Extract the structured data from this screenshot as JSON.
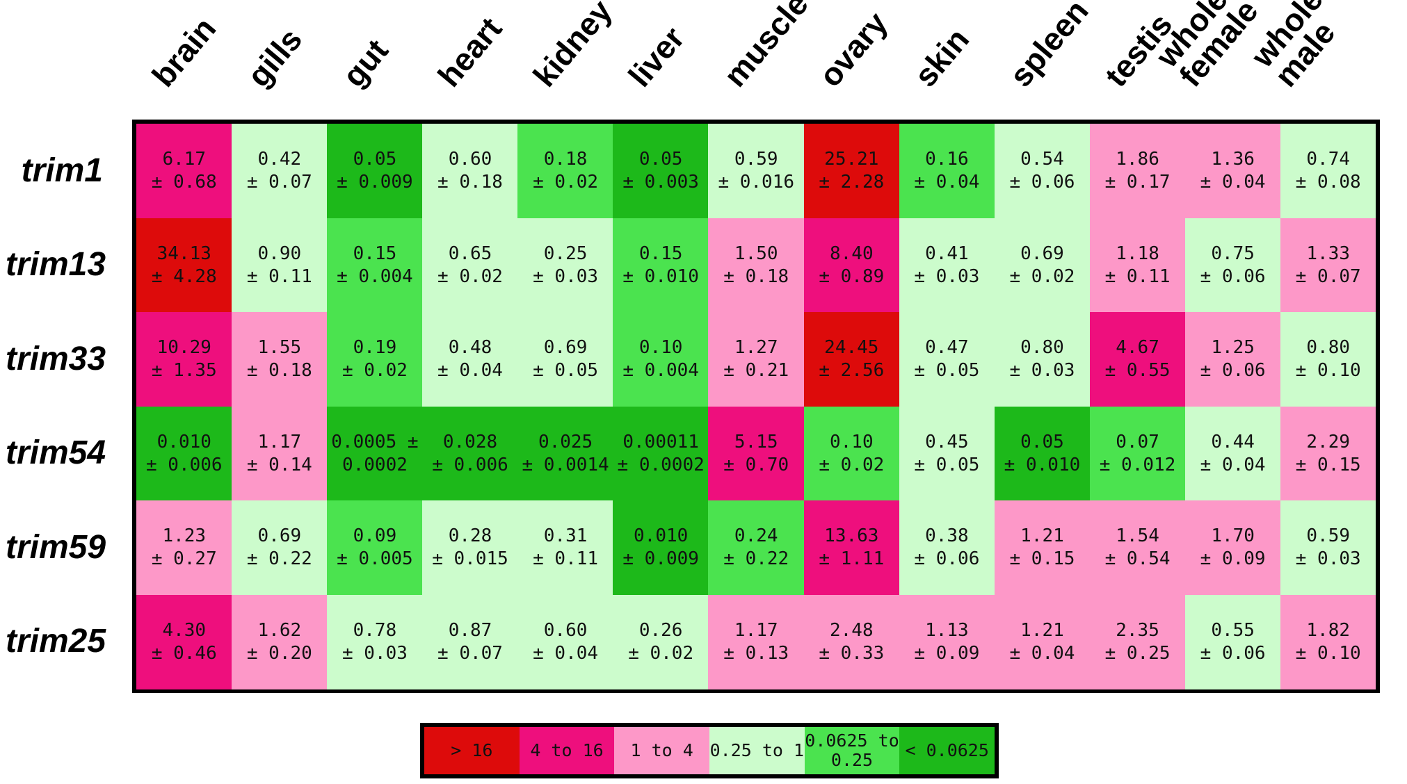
{
  "chart_data": {
    "type": "heatmap",
    "columns": [
      "brain",
      "gills",
      "gut",
      "heart",
      "kidney",
      "liver",
      "muscle",
      "ovary",
      "skin",
      "spleen",
      "testis",
      "whole\nfemale",
      "whole\nmale"
    ],
    "rows": [
      "trim1",
      "trim13",
      "trim33",
      "trim54",
      "trim59",
      "trim25"
    ],
    "values": [
      [
        [
          "6.17",
          "± 0.68"
        ],
        [
          "0.42",
          "± 0.07"
        ],
        [
          "0.05",
          "± 0.009"
        ],
        [
          "0.60",
          "± 0.18"
        ],
        [
          "0.18",
          "± 0.02"
        ],
        [
          "0.05",
          "± 0.003"
        ],
        [
          "0.59",
          "± 0.016"
        ],
        [
          "25.21",
          "± 2.28"
        ],
        [
          "0.16",
          "± 0.04"
        ],
        [
          "0.54",
          "± 0.06"
        ],
        [
          "1.86",
          "± 0.17"
        ],
        [
          "1.36",
          "± 0.04"
        ],
        [
          "0.74",
          "± 0.08"
        ]
      ],
      [
        [
          "34.13",
          "± 4.28"
        ],
        [
          "0.90",
          "± 0.11"
        ],
        [
          "0.15",
          "± 0.004"
        ],
        [
          "0.65",
          "± 0.02"
        ],
        [
          "0.25",
          "± 0.03"
        ],
        [
          "0.15",
          "± 0.010"
        ],
        [
          "1.50",
          "± 0.18"
        ],
        [
          "8.40",
          "± 0.89"
        ],
        [
          "0.41",
          "± 0.03"
        ],
        [
          "0.69",
          "± 0.02"
        ],
        [
          "1.18",
          "± 0.11"
        ],
        [
          "0.75",
          "± 0.06"
        ],
        [
          "1.33",
          "± 0.07"
        ]
      ],
      [
        [
          "10.29",
          "± 1.35"
        ],
        [
          "1.55",
          "± 0.18"
        ],
        [
          "0.19",
          "± 0.02"
        ],
        [
          "0.48",
          "± 0.04"
        ],
        [
          "0.69",
          "± 0.05"
        ],
        [
          "0.10",
          "± 0.004"
        ],
        [
          "1.27",
          "± 0.21"
        ],
        [
          "24.45",
          "± 2.56"
        ],
        [
          "0.47",
          "± 0.05"
        ],
        [
          "0.80",
          "± 0.03"
        ],
        [
          "4.67",
          "± 0.55"
        ],
        [
          "1.25",
          "± 0.06"
        ],
        [
          "0.80",
          "± 0.10"
        ]
      ],
      [
        [
          "0.010",
          "± 0.006"
        ],
        [
          "1.17",
          "± 0.14"
        ],
        [
          "0.0005 ±",
          "0.0002"
        ],
        [
          "0.028",
          "± 0.006"
        ],
        [
          "0.025",
          "± 0.0014"
        ],
        [
          "0.00011",
          "± 0.0002"
        ],
        [
          "5.15",
          "± 0.70"
        ],
        [
          "0.10",
          "± 0.02"
        ],
        [
          "0.45",
          "± 0.05"
        ],
        [
          "0.05",
          "± 0.010"
        ],
        [
          "0.07",
          "± 0.012"
        ],
        [
          "0.44",
          "± 0.04"
        ],
        [
          "2.29",
          "± 0.15"
        ]
      ],
      [
        [
          "1.23",
          "± 0.27"
        ],
        [
          "0.69",
          "± 0.22"
        ],
        [
          "0.09",
          "± 0.005"
        ],
        [
          "0.28",
          "± 0.015"
        ],
        [
          "0.31",
          "± 0.11"
        ],
        [
          "0.010",
          "± 0.009"
        ],
        [
          "0.24",
          "± 0.22"
        ],
        [
          "13.63",
          "± 1.11"
        ],
        [
          "0.38",
          "± 0.06"
        ],
        [
          "1.21",
          "± 0.15"
        ],
        [
          "1.54",
          "± 0.54"
        ],
        [
          "1.70",
          "± 0.09"
        ],
        [
          "0.59",
          "± 0.03"
        ]
      ],
      [
        [
          "4.30",
          "± 0.46"
        ],
        [
          "1.62",
          "± 0.20"
        ],
        [
          "0.78",
          "± 0.03"
        ],
        [
          "0.87",
          "± 0.07"
        ],
        [
          "0.60",
          "± 0.04"
        ],
        [
          "0.26",
          "± 0.02"
        ],
        [
          "1.17",
          "± 0.13"
        ],
        [
          "2.48",
          "± 0.33"
        ],
        [
          "1.13",
          "± 0.09"
        ],
        [
          "1.21",
          "± 0.04"
        ],
        [
          "2.35",
          "± 0.25"
        ],
        [
          "0.55",
          "± 0.06"
        ],
        [
          "1.82",
          "± 0.10"
        ]
      ]
    ],
    "legend": [
      {
        "label": "> 16",
        "color": "#dd0b0b"
      },
      {
        "label": "4 to 16",
        "color": "#ee0f7d"
      },
      {
        "label": "1 to 4",
        "color": "#fd98c8"
      },
      {
        "label": "0.25 to 1",
        "color": "#ccfccc"
      },
      {
        "label": "0.0625 to\n0.25",
        "color": "#4be34f"
      },
      {
        "label": "< 0.0625",
        "color": "#1db91a"
      }
    ]
  }
}
